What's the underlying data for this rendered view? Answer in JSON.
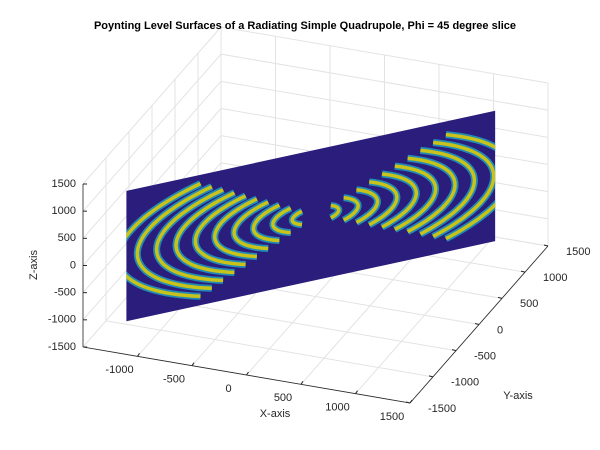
{
  "chart_data": {
    "type": "surface3d",
    "title": "Poynting Level Surfaces of a Radiating Simple Quadrupole, Phi = 45 degree slice",
    "xlabel": "X-axis",
    "ylabel": "Y-axis",
    "zlabel": "Z-axis",
    "xlim": [
      -1500,
      1500
    ],
    "ylim": [
      -1500,
      1500
    ],
    "zlim": [
      -1500,
      1500
    ],
    "xticks": [
      -1000,
      -500,
      0,
      500,
      1000,
      1500
    ],
    "yticks": [
      -1500,
      -1000,
      -500,
      0,
      500,
      1000,
      1500
    ],
    "zticks": [
      -1500,
      -1000,
      -500,
      0,
      500,
      1000,
      1500
    ],
    "grid": true
  }
}
